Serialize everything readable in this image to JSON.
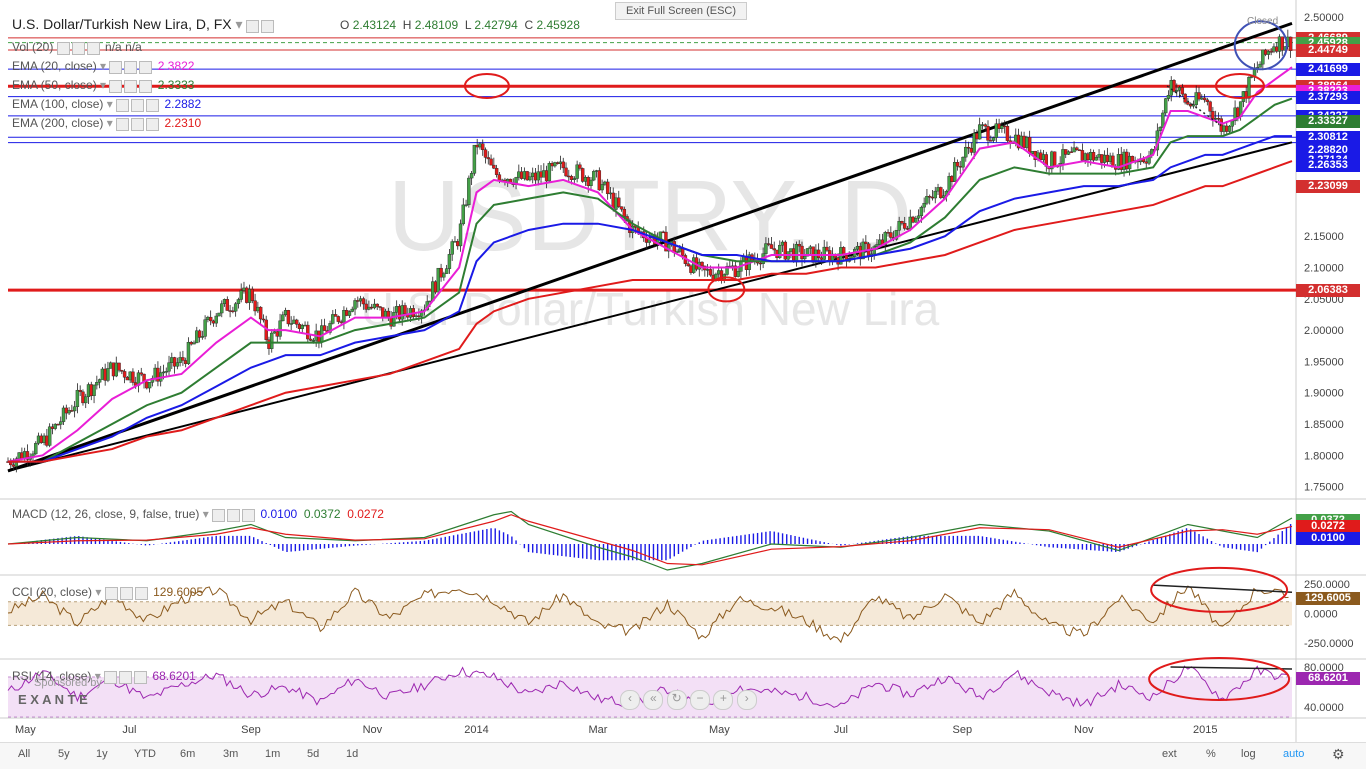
{
  "header": {
    "title": "U.S. Dollar/Turkish New Lira, D, FX",
    "ohlc": [
      {
        "k": "O",
        "v": "2.43124"
      },
      {
        "k": "H",
        "v": "2.48109"
      },
      {
        "k": "L",
        "v": "2.42794"
      },
      {
        "k": "C",
        "v": "2.45928"
      }
    ],
    "exit_fullscreen": "Exit Full Screen (ESC)",
    "closed": "Closed"
  },
  "watermark": {
    "symbol": "USDTRY, D",
    "name": "U.S. Dollar/Turkish New Lira"
  },
  "indicators": [
    {
      "label": "Vol (20)",
      "value": "n/a  n/a",
      "color": "#555555"
    },
    {
      "label": "EMA (20, close)",
      "value": "2.3822",
      "color": "#e91ed6"
    },
    {
      "label": "EMA (50, close)",
      "value": "2.3333",
      "color": "#2e7d32"
    },
    {
      "label": "EMA (100, close)",
      "value": "2.2882",
      "color": "#1a1ae6"
    },
    {
      "label": "EMA (200, close)",
      "value": "2.2310",
      "color": "#e01b1b"
    }
  ],
  "price_axis": {
    "min": 1.735,
    "max": 2.505,
    "ticks": [
      "2.50000",
      "2.15000",
      "2.10000",
      "2.05000",
      "2.00000",
      "1.95000",
      "1.90000",
      "1.85000",
      "1.80000",
      "1.75000"
    ],
    "tags": [
      {
        "v": 2.46689,
        "text": "2.46689",
        "bg": "#d32f2f"
      },
      {
        "v": 2.45928,
        "text": "2.45928",
        "bg": "#43a047"
      },
      {
        "v": 2.44749,
        "text": "2.44749",
        "bg": "#d32f2f"
      },
      {
        "v": 2.41699,
        "text": "2.41699",
        "bg": "#1a1ae6"
      },
      {
        "v": 2.38964,
        "text": "2.38964",
        "bg": "#d32f2f"
      },
      {
        "v": 2.38223,
        "text": "2.38223",
        "bg": "#e91ed6"
      },
      {
        "v": 2.37293,
        "text": "2.37293",
        "bg": "#1a1ae6"
      },
      {
        "v": 2.34227,
        "text": "2.34227",
        "bg": "#1a1ae6"
      },
      {
        "v": 2.33327,
        "text": "2.33327",
        "bg": "#2e7d32"
      },
      {
        "v": 2.30812,
        "text": "2.30812",
        "bg": "#1a1ae6"
      },
      {
        "v": 2.2882,
        "text": "2.28820",
        "bg": "#1a1ae6"
      },
      {
        "v": 2.27134,
        "text": "2.27134",
        "bg": "#1a1ae6"
      },
      {
        "v": 2.26353,
        "text": "2.26353",
        "bg": "#1a1ae6"
      },
      {
        "v": 2.23099,
        "text": "2.23099",
        "bg": "#d32f2f"
      },
      {
        "v": 2.06383,
        "text": "2.06383",
        "bg": "#d32f2f"
      }
    ]
  },
  "hlines": [
    {
      "v": 2.46689,
      "color": "#d32f2f",
      "w": 1
    },
    {
      "v": 2.44749,
      "color": "#d32f2f",
      "w": 1
    },
    {
      "v": 2.41699,
      "color": "#1a1ae6",
      "w": 1
    },
    {
      "v": 2.38964,
      "color": "#e01b1b",
      "w": 3
    },
    {
      "v": 2.37293,
      "color": "#1a1ae6",
      "w": 1
    },
    {
      "v": 2.34227,
      "color": "#1a1ae6",
      "w": 1
    },
    {
      "v": 2.30812,
      "color": "#1a1ae6",
      "w": 1
    },
    {
      "v": 2.2995,
      "color": "#1a1ae6",
      "w": 1
    },
    {
      "v": 2.06383,
      "color": "#e01b1b",
      "w": 3
    }
  ],
  "time_axis": {
    "labels": [
      {
        "t": 0.5,
        "text": "May"
      },
      {
        "t": 3.5,
        "text": "Jul"
      },
      {
        "t": 7,
        "text": "Sep"
      },
      {
        "t": 10.5,
        "text": "Nov"
      },
      {
        "t": 13.5,
        "text": "2014"
      },
      {
        "t": 17,
        "text": "Mar"
      },
      {
        "t": 20.5,
        "text": "May"
      },
      {
        "t": 24,
        "text": "Jul"
      },
      {
        "t": 27.5,
        "text": "Sep"
      },
      {
        "t": 31,
        "text": "Nov"
      },
      {
        "t": 34.5,
        "text": "2015"
      }
    ],
    "t_max": 37
  },
  "chart_data": [
    {
      "type": "line",
      "title": "USDTRY, D",
      "x": [
        0,
        1,
        2,
        3,
        4,
        5,
        6,
        7,
        7.5,
        8,
        9,
        10,
        11,
        12,
        13,
        13.5,
        14,
        15,
        16,
        17,
        18,
        19,
        20,
        21,
        22,
        23,
        24,
        25,
        26,
        27,
        28,
        29,
        30,
        31,
        32,
        33,
        33.5,
        34,
        34.5,
        35,
        35.5,
        36,
        36.5,
        37
      ],
      "series": [
        {
          "name": "close",
          "values": [
            1.79,
            1.82,
            1.89,
            1.94,
            1.92,
            1.95,
            2.03,
            2.06,
            1.98,
            2.02,
            1.99,
            2.05,
            2.02,
            2.04,
            2.15,
            2.3,
            2.25,
            2.24,
            2.26,
            2.24,
            2.16,
            2.14,
            2.09,
            2.1,
            2.13,
            2.12,
            2.12,
            2.13,
            2.18,
            2.23,
            2.32,
            2.31,
            2.27,
            2.28,
            2.27,
            2.28,
            2.4,
            2.36,
            2.37,
            2.32,
            2.36,
            2.42,
            2.46,
            2.46
          ]
        },
        {
          "name": "EMA (20, close)",
          "values": [
            1.79,
            1.8,
            1.84,
            1.89,
            1.92,
            1.93,
            1.98,
            2.02,
            2.0,
            2.0,
            1.99,
            2.02,
            2.02,
            2.03,
            2.1,
            2.22,
            2.24,
            2.23,
            2.24,
            2.22,
            2.16,
            2.13,
            2.1,
            2.1,
            2.12,
            2.12,
            2.12,
            2.13,
            2.16,
            2.21,
            2.29,
            2.3,
            2.26,
            2.27,
            2.26,
            2.28,
            2.35,
            2.35,
            2.34,
            2.33,
            2.34,
            2.38,
            2.4,
            2.42
          ]
        },
        {
          "name": "EMA (50, close)",
          "values": [
            1.79,
            1.79,
            1.82,
            1.85,
            1.88,
            1.9,
            1.94,
            1.98,
            1.98,
            1.98,
            1.98,
            2.0,
            2.01,
            2.02,
            2.06,
            2.17,
            2.2,
            2.21,
            2.22,
            2.21,
            2.17,
            2.14,
            2.12,
            2.11,
            2.11,
            2.11,
            2.11,
            2.12,
            2.14,
            2.18,
            2.24,
            2.26,
            2.25,
            2.25,
            2.25,
            2.26,
            2.3,
            2.31,
            2.31,
            2.31,
            2.32,
            2.34,
            2.36,
            2.37
          ]
        },
        {
          "name": "EMA (100, close)",
          "values": [
            1.79,
            1.79,
            1.81,
            1.83,
            1.86,
            1.88,
            1.91,
            1.94,
            1.95,
            1.96,
            1.96,
            1.98,
            1.99,
            2.0,
            2.03,
            2.11,
            2.14,
            2.16,
            2.17,
            2.17,
            2.16,
            2.14,
            2.12,
            2.12,
            2.11,
            2.11,
            2.11,
            2.12,
            2.13,
            2.15,
            2.19,
            2.21,
            2.22,
            2.23,
            2.23,
            2.24,
            2.26,
            2.27,
            2.28,
            2.28,
            2.29,
            2.3,
            2.31,
            2.31
          ]
        },
        {
          "name": "EMA (200, close)",
          "values": [
            1.79,
            1.79,
            1.8,
            1.81,
            1.83,
            1.84,
            1.86,
            1.88,
            1.89,
            1.9,
            1.91,
            1.92,
            1.93,
            1.95,
            1.97,
            2.01,
            2.03,
            2.05,
            2.06,
            2.07,
            2.08,
            2.08,
            2.08,
            2.08,
            2.09,
            2.09,
            2.1,
            2.1,
            2.11,
            2.12,
            2.14,
            2.16,
            2.17,
            2.18,
            2.19,
            2.2,
            2.21,
            2.22,
            2.23,
            2.23,
            2.24,
            2.25,
            2.26,
            2.27
          ]
        }
      ],
      "trendlines": [
        {
          "from": [
            0,
            1.775
          ],
          "to": [
            37,
            2.49
          ],
          "color": "#000000",
          "w": 3
        },
        {
          "from": [
            0,
            1.775
          ],
          "to": [
            37,
            2.3
          ],
          "color": "#000000",
          "w": 2
        }
      ]
    },
    {
      "type": "line",
      "title": "MACD (12, 26, close, 9, false, true)",
      "values_text": [
        "0.0100",
        "0.0372",
        "0.0272"
      ],
      "value_colors": [
        "#1a1ae6",
        "#2e7d32",
        "#e01b1b"
      ],
      "ylim": [
        -0.04,
        0.06
      ],
      "x": [
        0,
        2,
        4,
        6,
        7,
        8,
        10,
        12,
        14,
        14.5,
        15,
        17,
        18,
        19,
        20,
        22,
        24,
        26,
        28,
        30,
        32,
        34,
        35,
        36,
        37
      ],
      "series": [
        {
          "name": "macd",
          "values": [
            0.0,
            0.01,
            0.005,
            0.02,
            0.03,
            0.01,
            0.005,
            0.01,
            0.045,
            0.05,
            0.03,
            -0.005,
            -0.02,
            -0.04,
            -0.03,
            0.0,
            -0.005,
            0.01,
            0.03,
            0.02,
            -0.01,
            0.03,
            0.02,
            0.01,
            0.04
          ]
        },
        {
          "name": "signal",
          "values": [
            0.0,
            0.005,
            0.006,
            0.015,
            0.025,
            0.015,
            0.006,
            0.008,
            0.035,
            0.045,
            0.035,
            0.005,
            -0.01,
            -0.03,
            -0.032,
            -0.008,
            -0.004,
            0.005,
            0.025,
            0.022,
            -0.005,
            0.02,
            0.022,
            0.015,
            0.027
          ]
        }
      ],
      "axis_tags": [
        {
          "v": 0.0372,
          "text": "0.0372",
          "bg": "#43a047"
        },
        {
          "v": 0.0272,
          "text": "0.0272",
          "bg": "#e01b1b"
        },
        {
          "v": 0.01,
          "text": "0.0100",
          "bg": "#1a1ae6"
        }
      ]
    },
    {
      "type": "line",
      "title": "CCI (20, close)",
      "values_text": [
        "129.6005"
      ],
      "ylim": [
        -350,
        300
      ],
      "x": [
        0,
        1,
        2,
        3,
        4,
        5,
        6,
        7,
        8,
        9,
        10,
        11,
        12,
        13,
        14,
        15,
        16,
        17,
        18,
        19,
        20,
        21,
        22,
        23,
        24,
        25,
        26,
        27,
        28,
        29,
        30,
        31,
        32,
        33,
        34,
        35,
        36,
        37
      ],
      "series": [
        {
          "name": "CCI",
          "values": [
            20,
            150,
            -80,
            160,
            -60,
            120,
            200,
            -50,
            100,
            -120,
            180,
            -40,
            150,
            230,
            120,
            -80,
            160,
            -100,
            -150,
            90,
            -200,
            120,
            60,
            -60,
            -230,
            150,
            -50,
            160,
            -80,
            180,
            -100,
            -180,
            130,
            -60,
            240,
            -150,
            220,
            130
          ]
        }
      ],
      "ticks": [
        "250.0000",
        "0.0000",
        "-250.0000"
      ],
      "band": [
        100,
        -100
      ],
      "axis_tags": [
        {
          "v": 129.6005,
          "text": "129.6005",
          "bg": "#8b5a1e"
        }
      ],
      "trendline": {
        "from": [
          33,
          240
        ],
        "to": [
          37,
          180
        ]
      }
    },
    {
      "type": "line",
      "title": "RSI (14, close)",
      "values_text": [
        "68.6201"
      ],
      "ylim": [
        32,
        85
      ],
      "x": [
        0,
        1,
        2,
        3,
        4,
        5,
        6,
        7,
        8,
        9,
        10,
        11,
        12,
        13,
        14,
        15,
        16,
        17,
        18,
        19,
        20,
        21,
        22,
        23,
        24,
        25,
        26,
        27,
        28,
        29,
        30,
        31,
        32,
        33,
        34,
        35,
        36,
        37
      ],
      "series": [
        {
          "name": "RSI",
          "values": [
            55,
            75,
            50,
            68,
            48,
            62,
            72,
            52,
            60,
            45,
            68,
            50,
            62,
            76,
            70,
            52,
            65,
            48,
            44,
            58,
            38,
            60,
            55,
            50,
            40,
            64,
            52,
            70,
            50,
            74,
            55,
            42,
            62,
            50,
            80,
            48,
            76,
            68
          ]
        }
      ],
      "ticks": [
        "80.0000",
        "40.0000"
      ],
      "band": [
        70,
        30
      ],
      "axis_tags": [
        {
          "v": 68.6201,
          "text": "68.6201",
          "bg": "#9c27b0"
        }
      ],
      "trendline": {
        "from": [
          33.5,
          80
        ],
        "to": [
          37,
          78
        ]
      }
    }
  ],
  "sponsor": {
    "line1": "Sponsored by",
    "line2": "E X A N T E"
  },
  "footer": {
    "left": [
      "All",
      "5y",
      "1y",
      "YTD",
      "6m",
      "3m",
      "1m",
      "5d",
      "1d"
    ],
    "right": [
      "ext",
      "%",
      "log",
      "auto"
    ]
  },
  "colors": {
    "up": "#43a047",
    "down": "#e01b1b"
  }
}
